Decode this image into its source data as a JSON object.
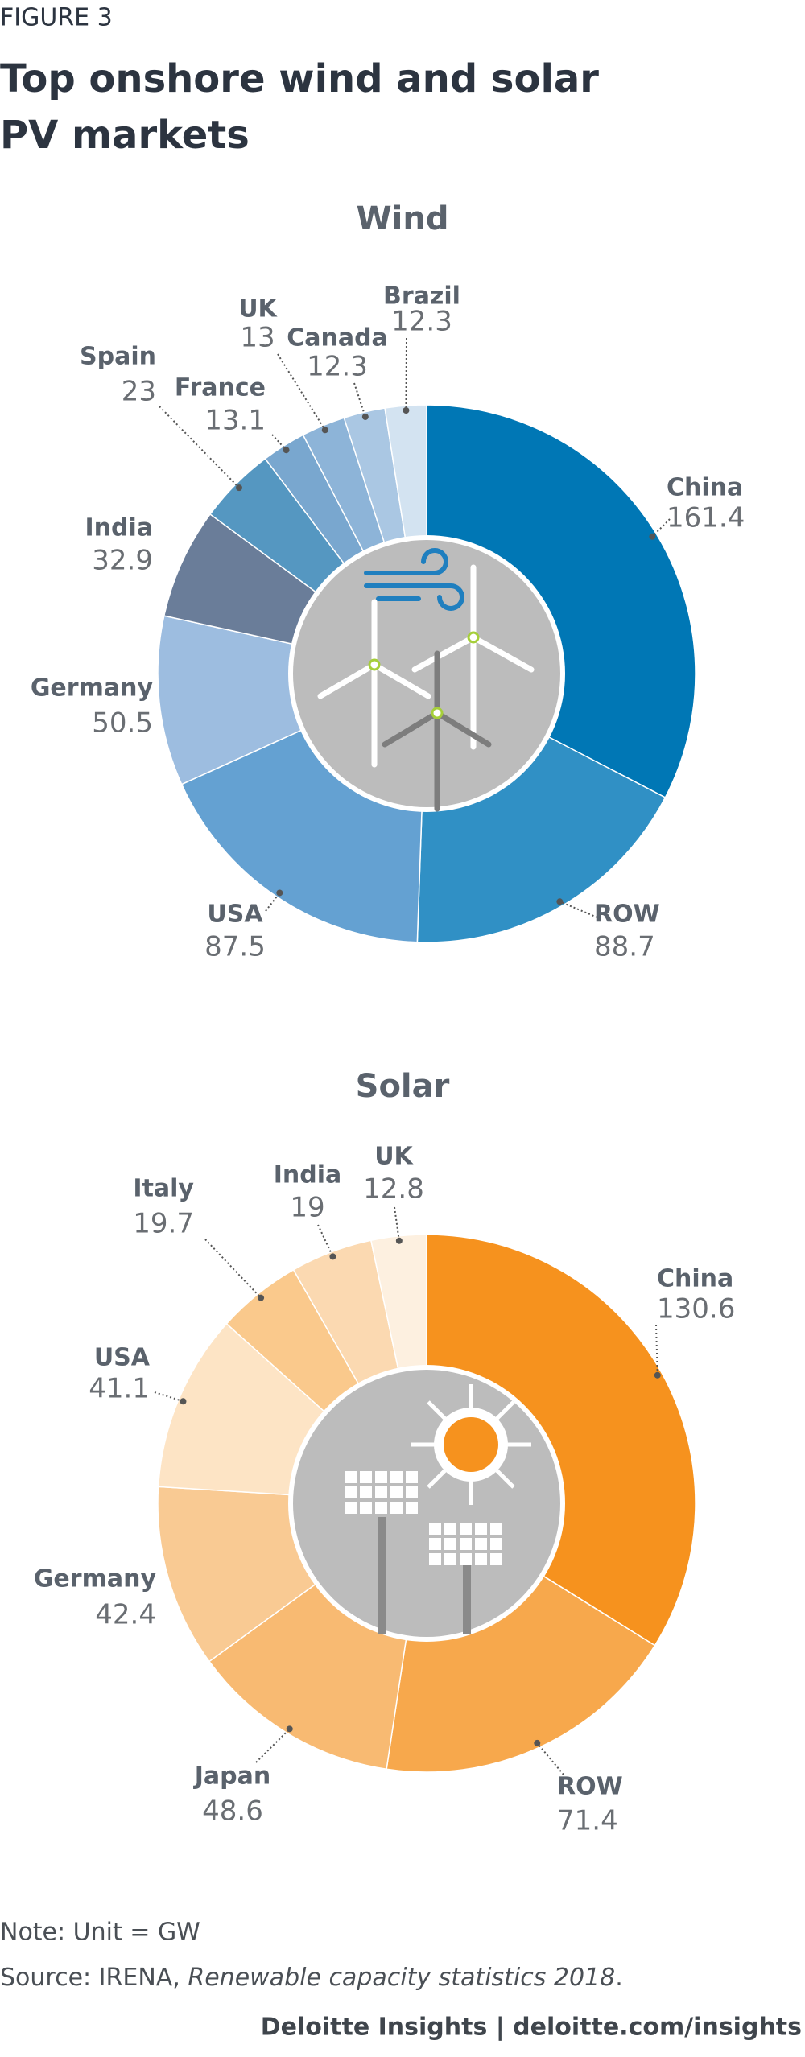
{
  "figure_label": "FIGURE 3",
  "title": [
    "Top onshore wind and solar",
    "PV markets"
  ],
  "chart_data": [
    {
      "type": "pie",
      "title": "Wind",
      "categories": [
        "China",
        "ROW",
        "USA",
        "Germany",
        "India",
        "Spain",
        "France",
        "UK",
        "Canada",
        "Brazil"
      ],
      "values": [
        161.4,
        88.7,
        87.5,
        50.5,
        32.9,
        23,
        13.1,
        13,
        12.3,
        12.3
      ],
      "colors": [
        "#0077b5",
        "#3090c5",
        "#64a1d2",
        "#9dbde0",
        "#6a7d99",
        "#5597c1",
        "#79a7cf",
        "#8db4d8",
        "#aac7e3",
        "#d3e3f1"
      ]
    },
    {
      "type": "pie",
      "title": "Solar",
      "categories": [
        "China",
        "ROW",
        "Japan",
        "Germany",
        "USA",
        "Italy",
        "India",
        "UK"
      ],
      "values": [
        130.6,
        71.4,
        48.6,
        42.4,
        41.1,
        19.7,
        19,
        12.8
      ],
      "colors": [
        "#f6921e",
        "#f7a84c",
        "#f8ba72",
        "#f9ca93",
        "#fde4c5",
        "#fac98c",
        "#fbd9b1",
        "#fdf0e0"
      ]
    }
  ],
  "note": "Note: Unit = GW",
  "source": {
    "prefix": "Source: IRENA, ",
    "italic": "Renewable capacity statistics 2018",
    "suffix": "."
  },
  "footer": "Deloitte Insights | deloitte.com/insights"
}
